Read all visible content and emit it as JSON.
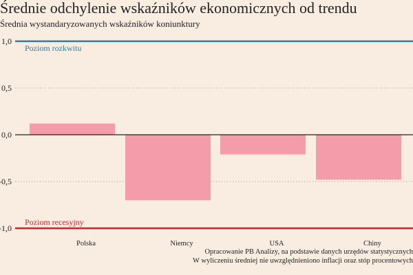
{
  "chart_data": {
    "type": "bar",
    "title": "Średnie odchylenie wskaźników ekonomicznych od trendu",
    "subtitle": "Średnia wystandaryzowanych wskaźników koniunktury",
    "categories": [
      "Polska",
      "Niemcy",
      "USA",
      "Chiny"
    ],
    "values": [
      0.12,
      -0.7,
      -0.21,
      -0.48
    ],
    "ylim": [
      -1.0,
      1.0
    ],
    "yticks": [
      1.0,
      0.5,
      0.0,
      -0.5,
      -1.0
    ],
    "ytick_labels": [
      "1,0",
      "0,5",
      "0,0",
      "-0,5",
      "-1,0"
    ],
    "reference_lines": [
      {
        "value": 1.0,
        "label": "Poziom rozkwitu",
        "color": "#2b7fa1"
      },
      {
        "value": -1.0,
        "label": "Poziom recesyjny",
        "color": "#d2232a"
      }
    ],
    "bar_color": "#f49ca9",
    "grid": "dotted at ±0.5",
    "footnotes": [
      "Opracowanie PB Analizy, na podstawie danych urzędów statystycznych",
      "W wyliczeniu średniej nie uwzględnieniono inflacji oraz stóp procentowych"
    ]
  }
}
